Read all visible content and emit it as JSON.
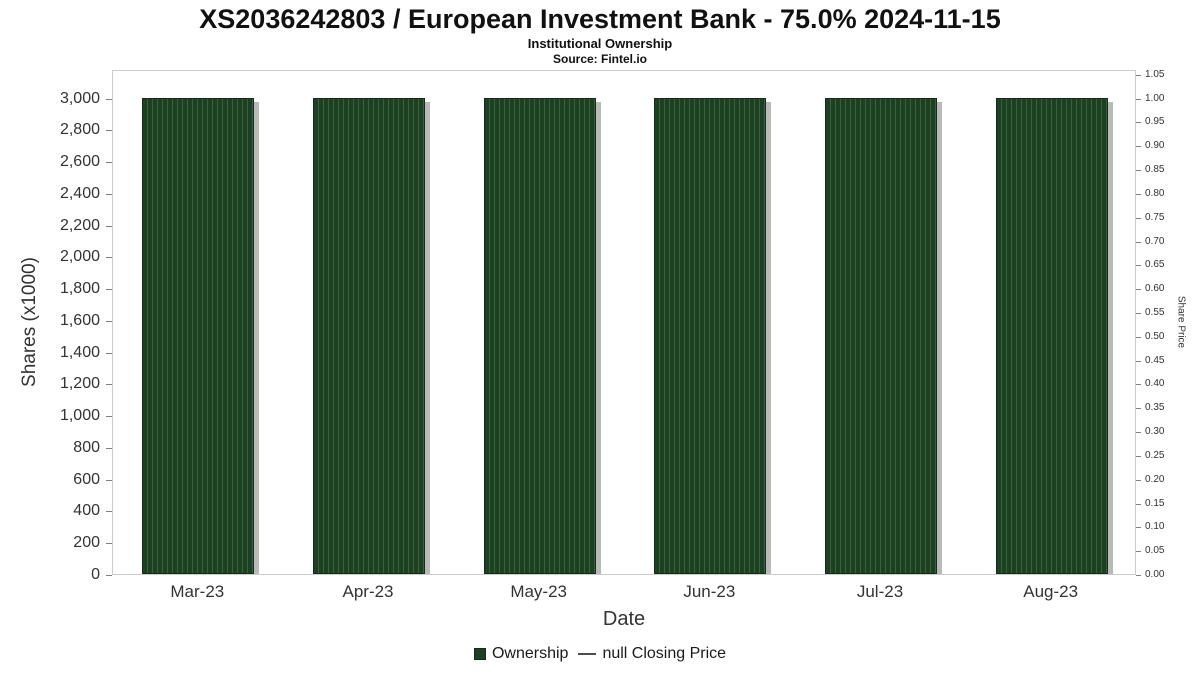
{
  "chart_data": {
    "type": "bar",
    "title": "XS2036242803 / European Investment Bank - 75.0% 2024-11-15",
    "subtitle": "Institutional Ownership",
    "source": "Source: Fintel.io",
    "xlabel": "Date",
    "categories": [
      "Mar-23",
      "Apr-23",
      "May-23",
      "Jun-23",
      "Jul-23",
      "Aug-23"
    ],
    "series": [
      {
        "name": "Ownership",
        "values": [
          3000,
          3000,
          3000,
          3000,
          3000,
          3000
        ]
      },
      {
        "name": "null Closing Price",
        "values": []
      }
    ],
    "left_axis": {
      "label": "Shares (x1000)",
      "tick_labels": [
        "0",
        "200",
        "400",
        "600",
        "800",
        "1,000",
        "1,200",
        "1,400",
        "1,600",
        "1,800",
        "2,000",
        "2,200",
        "2,400",
        "2,600",
        "2,800",
        "3,000"
      ],
      "max": 3180
    },
    "right_axis": {
      "label": "Share Price",
      "tick_labels": [
        "0.00",
        "0.05",
        "0.10",
        "0.15",
        "0.20",
        "0.25",
        "0.30",
        "0.35",
        "0.40",
        "0.45",
        "0.50",
        "0.55",
        "0.60",
        "0.65",
        "0.70",
        "0.75",
        "0.80",
        "0.85",
        "0.90",
        "0.95",
        "1.00",
        "1.05"
      ],
      "max": 1.06
    },
    "legend": [
      {
        "label": "Ownership",
        "marker": "square",
        "color": "#1d4023"
      },
      {
        "label": "null Closing Price",
        "marker": "line",
        "color": "#4d4d4d"
      }
    ],
    "colors": {
      "bar": "#1d4023",
      "bar_stripe": "#35633c",
      "bar_border": "#142d18",
      "shadow": "rgba(128,128,128,0.55)",
      "plot_border": "#cccccc",
      "axis_text": "#333333"
    },
    "grid": false,
    "legend_position": "bottom"
  }
}
